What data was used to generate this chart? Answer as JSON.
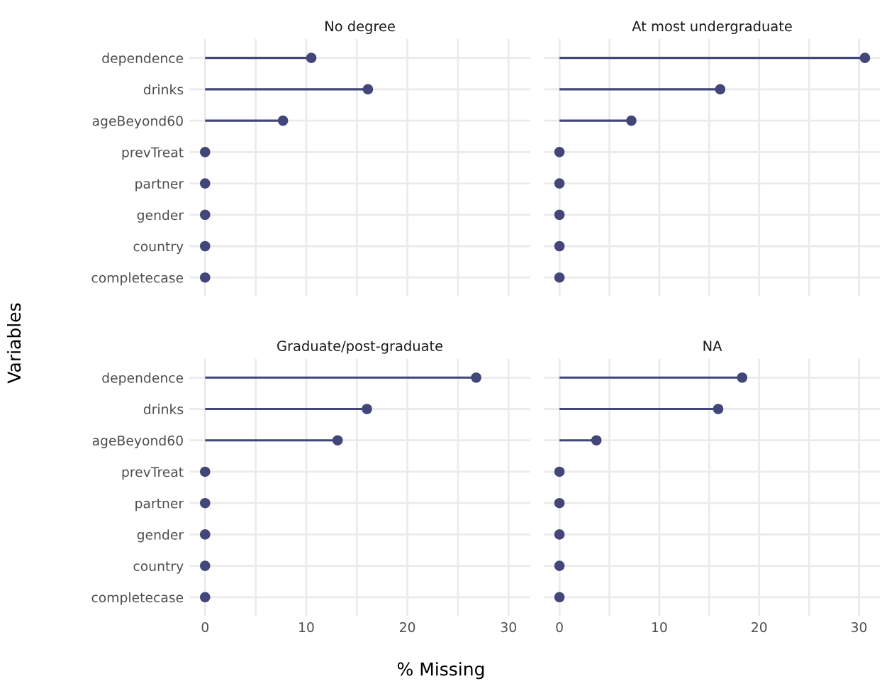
{
  "chart_data": [
    {
      "type": "lollipop",
      "title": "No degree",
      "ylabel": "Variables",
      "orientation": "horizontal",
      "categories": [
        "dependence",
        "drinks",
        "ageBeyond60",
        "prevTreat",
        "partner",
        "gender",
        "country",
        "completecase"
      ],
      "series": [
        {
          "color": "#424679",
          "values": [
            10.5,
            16.1,
            7.7,
            0,
            0,
            0,
            0,
            0
          ]
        }
      ],
      "xlim": [
        -1.53,
        32.13
      ],
      "xticks": [
        {
          "value": 0,
          "label": null
        },
        {
          "value": 5,
          "label": null
        },
        {
          "value": 10,
          "label": null
        },
        {
          "value": 15,
          "label": null
        },
        {
          "value": 20,
          "label": null
        },
        {
          "value": 25,
          "label": null
        },
        {
          "value": 30,
          "label": null
        }
      ],
      "grid": true,
      "marker": "circle",
      "tick_labels": "y"
    },
    {
      "type": "lollipop",
      "title": "At most undergraduate",
      "orientation": "horizontal",
      "categories": [
        null,
        null,
        null,
        null,
        null,
        null,
        null,
        null
      ],
      "series": [
        {
          "color": "#424679",
          "values": [
            30.6,
            16.1,
            7.2,
            0,
            0,
            0,
            0,
            0
          ]
        }
      ],
      "xlim": [
        -1.53,
        32.13
      ],
      "xticks": [
        {
          "value": 0,
          "label": null
        },
        {
          "value": 5,
          "label": null
        },
        {
          "value": 10,
          "label": null
        },
        {
          "value": 15,
          "label": null
        },
        {
          "value": 20,
          "label": null
        },
        {
          "value": 25,
          "label": null
        },
        {
          "value": 30,
          "label": null
        }
      ],
      "grid": true,
      "marker": "circle",
      "tick_labels": false
    },
    {
      "type": "lollipop",
      "title": "Graduate/post-graduate",
      "xlabel": "% Missing",
      "orientation": "horizontal",
      "categories": [
        "dependence",
        "drinks",
        "ageBeyond60",
        "prevTreat",
        "partner",
        "gender",
        "country",
        "completecase"
      ],
      "series": [
        {
          "color": "#424679",
          "values": [
            26.8,
            16.0,
            13.1,
            0,
            0,
            0,
            0,
            0
          ]
        }
      ],
      "xlim": [
        -1.53,
        32.13
      ],
      "xticks": [
        {
          "value": 0,
          "label": "0"
        },
        {
          "value": 5,
          "label": null
        },
        {
          "value": 10,
          "label": "10"
        },
        {
          "value": 15,
          "label": null
        },
        {
          "value": 20,
          "label": "20"
        },
        {
          "value": 25,
          "label": null
        },
        {
          "value": 30,
          "label": "30"
        }
      ],
      "grid": true,
      "marker": "circle"
    },
    {
      "type": "lollipop",
      "title": "NA",
      "orientation": "horizontal",
      "categories": [
        null,
        null,
        null,
        null,
        null,
        null,
        null,
        null
      ],
      "series": [
        {
          "color": "#424679",
          "values": [
            18.3,
            15.9,
            3.7,
            0,
            0,
            0,
            0,
            0
          ]
        }
      ],
      "xlim": [
        -1.53,
        32.13
      ],
      "xticks": [
        {
          "value": 0,
          "label": "0"
        },
        {
          "value": 5,
          "label": null
        },
        {
          "value": 10,
          "label": "10"
        },
        {
          "value": 15,
          "label": null
        },
        {
          "value": 20,
          "label": "20"
        },
        {
          "value": 25,
          "label": null
        },
        {
          "value": 30,
          "label": "30"
        }
      ],
      "grid": true,
      "marker": "circle",
      "tick_labels": "x"
    }
  ]
}
